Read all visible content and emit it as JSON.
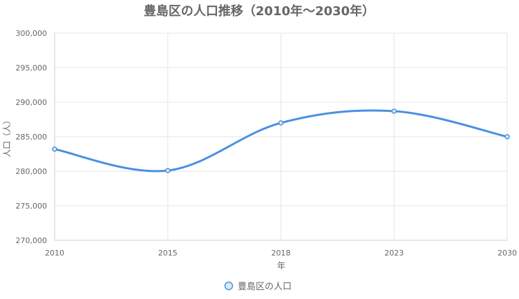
{
  "chart_data": {
    "type": "line",
    "title": "豊島区の人口推移（2010年〜2030年）",
    "xlabel": "年",
    "ylabel": "人口（人）",
    "categories": [
      "2010",
      "2015",
      "2018",
      "2023",
      "2030"
    ],
    "series": [
      {
        "name": "豊島区の人口",
        "values": [
          283200,
          280100,
          287000,
          288700,
          285000
        ],
        "color": "#4a90e2"
      }
    ],
    "ylim": [
      270000,
      300000
    ],
    "yticks": [
      "270,000",
      "275,000",
      "280,000",
      "285,000",
      "290,000",
      "295,000",
      "300,000"
    ],
    "grid": true,
    "legend": "bottom"
  }
}
